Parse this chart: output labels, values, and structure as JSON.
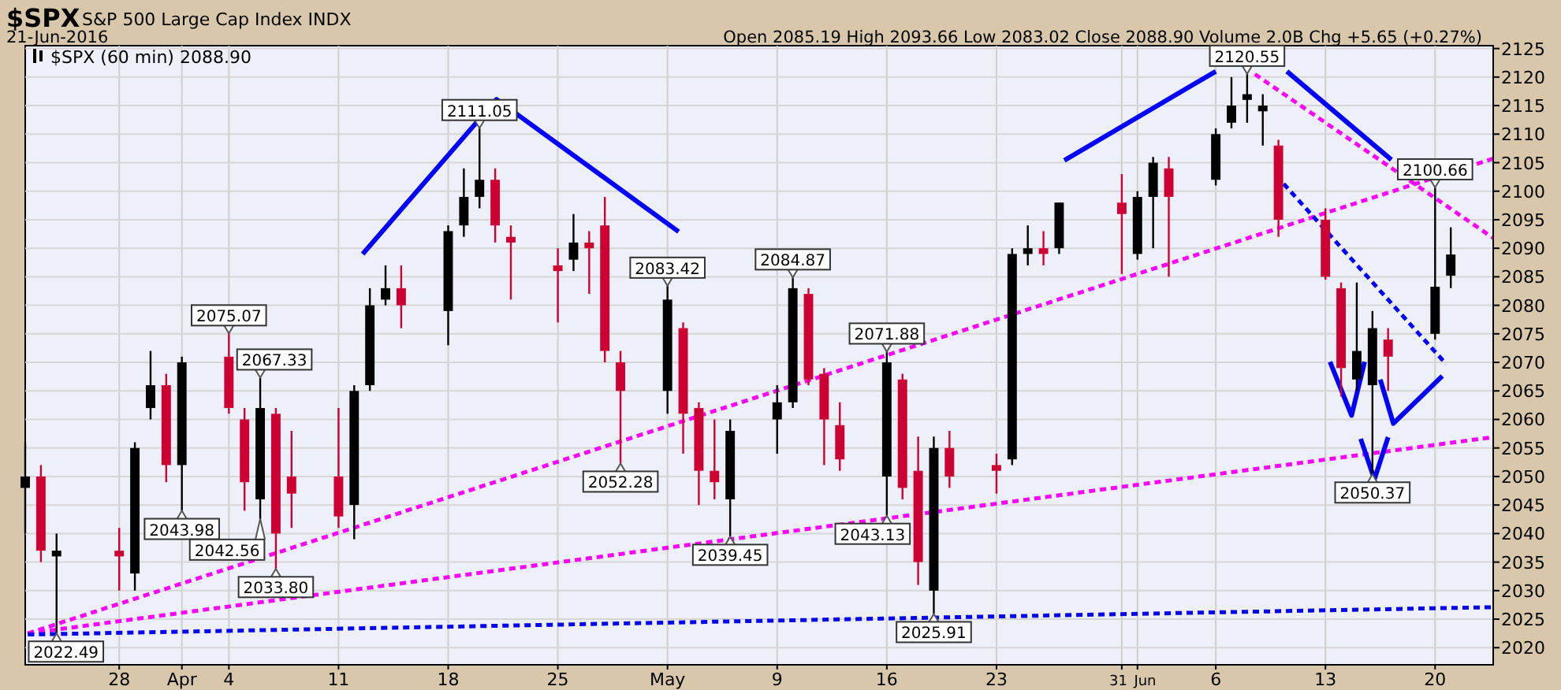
{
  "chart_data": {
    "type": "candlestick",
    "title": "$SPX",
    "subtitle": "S&P 500 Large Cap Index INDX",
    "annotations": [
      "21-Jun-2016",
      "Open 2085.19 High 2093.66 Low 2083.02 Close 2088.90 Volume 2.0B Chg +5.65 (+0.27%)",
      {
        "text": "2022.49",
        "x": "2016-03-24",
        "y": 2022.49
      },
      {
        "text": "2043.98",
        "x": "2016-04-01",
        "y": 2043.98
      },
      {
        "text": "2075.07",
        "x": "2016-04-04",
        "y": 2075.07
      },
      {
        "text": "2042.56",
        "x": "2016-04-06",
        "y": 2042.56
      },
      {
        "text": "2067.33",
        "x": "2016-04-06",
        "y": 2067.33
      },
      {
        "text": "2033.80",
        "x": "2016-04-07",
        "y": 2033.8
      },
      {
        "text": "2111.05",
        "x": "2016-04-20",
        "y": 2111.05
      },
      {
        "text": "2052.28",
        "x": "2016-04-29",
        "y": 2052.28
      },
      {
        "text": "2083.42",
        "x": "2016-05-02",
        "y": 2083.42
      },
      {
        "text": "2039.45",
        "x": "2016-05-06",
        "y": 2039.45
      },
      {
        "text": "2084.87",
        "x": "2016-05-10",
        "y": 2084.87
      },
      {
        "text": "2043.13",
        "x": "2016-05-16",
        "y": 2043.13
      },
      {
        "text": "2071.88",
        "x": "2016-05-16",
        "y": 2071.88
      },
      {
        "text": "2025.91",
        "x": "2016-05-19",
        "y": 2025.91
      },
      {
        "text": "2120.55",
        "x": "2016-06-08",
        "y": 2120.55
      },
      {
        "text": "2050.37",
        "x": "2016-06-16",
        "y": 2050.37
      },
      {
        "text": "2100.66",
        "x": "2016-06-20",
        "y": 2100.66
      }
    ],
    "xlim": [
      "2016-03-22",
      "2016-06-23T17:00"
    ],
    "xticks": [
      {
        "value": "2016-03-28",
        "label": "28"
      },
      {
        "value": "2016-04-01",
        "label": "Apr"
      },
      {
        "value": "2016-04-04",
        "label": "4"
      },
      {
        "value": "2016-04-11",
        "label": "11"
      },
      {
        "value": "2016-04-18",
        "label": "18"
      },
      {
        "value": "2016-04-25",
        "label": "25"
      },
      {
        "value": "2016-05-02",
        "label": "May"
      },
      {
        "value": "2016-05-09",
        "label": "9"
      },
      {
        "value": "2016-05-16",
        "label": "16"
      },
      {
        "value": "2016-05-23",
        "label": "23"
      },
      {
        "value": "2016-05-31",
        "label": "31"
      },
      {
        "value": "2016-06-01",
        "label": "Jun"
      },
      {
        "value": "2016-06-06",
        "label": "6"
      },
      {
        "value": "2016-06-13",
        "label": "13"
      },
      {
        "value": "2016-06-20",
        "label": "20"
      }
    ],
    "ylim": [
      2017,
      2125.5
    ],
    "yticks": [
      2020,
      2025,
      2030,
      2035,
      2040,
      2045,
      2050,
      2055,
      2060,
      2065,
      2070,
      2075,
      2080,
      2085,
      2090,
      2095,
      2100,
      2105,
      2110,
      2115,
      2120,
      2125
    ],
    "grid": true,
    "legend": "top left",
    "series": [
      {
        "name": "$SPX (60 min) 2088.90",
        "color": "#000000",
        "x": [
          "2016-03-22",
          "2016-03-23",
          "2016-03-24",
          "2016-03-28",
          "2016-03-29",
          "2016-03-30",
          "2016-03-31",
          "2016-04-01",
          "2016-04-04",
          "2016-04-05",
          "2016-04-06",
          "2016-04-07",
          "2016-04-08",
          "2016-04-11",
          "2016-04-12",
          "2016-04-13",
          "2016-04-14",
          "2016-04-15",
          "2016-04-18",
          "2016-04-19",
          "2016-04-20",
          "2016-04-21",
          "2016-04-22",
          "2016-04-25",
          "2016-04-26",
          "2016-04-27",
          "2016-04-28",
          "2016-04-29",
          "2016-05-02",
          "2016-05-03",
          "2016-05-04",
          "2016-05-05",
          "2016-05-06",
          "2016-05-09",
          "2016-05-10",
          "2016-05-11",
          "2016-05-12",
          "2016-05-13",
          "2016-05-16",
          "2016-05-17",
          "2016-05-18",
          "2016-05-19",
          "2016-05-20",
          "2016-05-23",
          "2016-05-24",
          "2016-05-25",
          "2016-05-26",
          "2016-05-27",
          "2016-05-31",
          "2016-06-01",
          "2016-06-02",
          "2016-06-03",
          "2016-06-06",
          "2016-06-07",
          "2016-06-08",
          "2016-06-09",
          "2016-06-10",
          "2016-06-13",
          "2016-06-14",
          "2016-06-15",
          "2016-06-16",
          "2016-06-17",
          "2016-06-20",
          "2016-06-21"
        ],
        "ohlc": [
          [
            2048,
            2056,
            2040,
            2050
          ],
          [
            2050,
            2052,
            2035,
            2037
          ],
          [
            2036,
            2040,
            2022.49,
            2037
          ],
          [
            2037,
            2041,
            2030,
            2036
          ],
          [
            2033,
            2056,
            2030,
            2055
          ],
          [
            2062,
            2072,
            2060,
            2066
          ],
          [
            2066,
            2068,
            2049,
            2052
          ],
          [
            2052,
            2071,
            2043.98,
            2070
          ],
          [
            2071,
            2075.07,
            2061,
            2062
          ],
          [
            2060,
            2062,
            2044,
            2049
          ],
          [
            2046,
            2067.33,
            2042.56,
            2062
          ],
          [
            2061,
            2062,
            2033.8,
            2040
          ],
          [
            2050,
            2058,
            2041,
            2047
          ],
          [
            2050,
            2062,
            2041,
            2043
          ],
          [
            2045,
            2066,
            2039,
            2065
          ],
          [
            2066,
            2083,
            2065,
            2080
          ],
          [
            2081,
            2087,
            2080,
            2083
          ],
          [
            2083,
            2087,
            2076,
            2080
          ],
          [
            2079,
            2094,
            2073,
            2093
          ],
          [
            2094,
            2104,
            2092,
            2099
          ],
          [
            2099,
            2111.05,
            2097,
            2102
          ],
          [
            2102,
            2104,
            2091,
            2094
          ],
          [
            2092,
            2094,
            2081,
            2091
          ],
          [
            2087,
            2090,
            2077,
            2086
          ],
          [
            2088,
            2096,
            2086,
            2091
          ],
          [
            2091,
            2093,
            2082,
            2090
          ],
          [
            2094,
            2099,
            2070,
            2072
          ],
          [
            2070,
            2072,
            2052.28,
            2065
          ],
          [
            2065,
            2083.42,
            2061,
            2081
          ],
          [
            2076,
            2077,
            2054,
            2061
          ],
          [
            2062,
            2063,
            2045,
            2051
          ],
          [
            2051,
            2060,
            2046,
            2049
          ],
          [
            2046,
            2060,
            2039.45,
            2058
          ],
          [
            2060,
            2066,
            2054,
            2063
          ],
          [
            2063,
            2084.87,
            2062,
            2083
          ],
          [
            2082,
            2083,
            2066,
            2067
          ],
          [
            2068,
            2069,
            2052,
            2060
          ],
          [
            2059,
            2063,
            2051,
            2053
          ],
          [
            2050,
            2071.88,
            2043.13,
            2070
          ],
          [
            2067,
            2068,
            2046,
            2048
          ],
          [
            2051,
            2057,
            2031,
            2035
          ],
          [
            2030,
            2057,
            2025.91,
            2055
          ],
          [
            2055,
            2058,
            2048,
            2050
          ],
          [
            2052,
            2054,
            2047,
            2051
          ],
          [
            2053,
            2090,
            2052,
            2089
          ],
          [
            2089,
            2094,
            2087,
            2090
          ],
          [
            2090,
            2093,
            2087,
            2089
          ],
          [
            2090,
            2098,
            2089,
            2098
          ],
          [
            2098,
            2103,
            2085.5,
            2096
          ],
          [
            2089,
            2100,
            2088,
            2099
          ],
          [
            2099,
            2106,
            2090,
            2105
          ],
          [
            2104,
            2106,
            2085,
            2099
          ],
          [
            2102,
            2111,
            2101,
            2110
          ],
          [
            2112,
            2120,
            2111,
            2115
          ],
          [
            2116,
            2120.55,
            2112,
            2117
          ],
          [
            2114,
            2117,
            2108,
            2115
          ],
          [
            2108,
            2109,
            2092,
            2095
          ],
          [
            2095,
            2097,
            2084.5,
            2085
          ],
          [
            2083,
            2084,
            2064,
            2069
          ],
          [
            2067,
            2084,
            2065,
            2072
          ],
          [
            2066,
            2079,
            2050.37,
            2076
          ],
          [
            2074,
            2076,
            2065,
            2071
          ],
          [
            2075,
            2100.66,
            2074,
            2083.25
          ],
          [
            2085.19,
            2093.66,
            2083.02,
            2088.9
          ]
        ],
        "colors": [
          "#000000",
          "#cc0033",
          "#000000",
          "#cc0033",
          "#000000",
          "#000000",
          "#cc0033",
          "#000000",
          "#cc0033",
          "#cc0033",
          "#000000",
          "#cc0033",
          "#cc0033",
          "#cc0033",
          "#000000",
          "#000000",
          "#000000",
          "#cc0033",
          "#000000",
          "#000000",
          "#000000",
          "#cc0033",
          "#cc0033",
          "#cc0033",
          "#000000",
          "#cc0033",
          "#cc0033",
          "#cc0033",
          "#000000",
          "#cc0033",
          "#cc0033",
          "#cc0033",
          "#000000",
          "#000000",
          "#000000",
          "#cc0033",
          "#cc0033",
          "#cc0033",
          "#000000",
          "#cc0033",
          "#cc0033",
          "#000000",
          "#cc0033",
          "#cc0033",
          "#000000",
          "#000000",
          "#cc0033",
          "#000000",
          "#cc0033",
          "#000000",
          "#000000",
          "#cc0033",
          "#000000",
          "#000000",
          "#000000",
          "#000000",
          "#cc0033",
          "#cc0033",
          "#cc0033",
          "#000000",
          "#000000",
          "#cc0033",
          "#000000",
          "#000000"
        ]
      },
      {
        "type": "line",
        "color": "#ff00ff",
        "line_style": "dotted",
        "x": [
          "2016-03-22T04:00",
          "2016-06-23T17:00"
        ],
        "values": [
          2022.5,
          2105.7
        ]
      },
      {
        "type": "line",
        "color": "#ff00ff",
        "line_style": "dotted",
        "x": [
          "2016-03-22T04:00",
          "2016-06-23T17:00"
        ],
        "values": [
          2022.5,
          2056.9
        ]
      },
      {
        "type": "line",
        "color": "#ff00ff",
        "line_style": "dotted",
        "x": [
          "2016-06-08T12:00",
          "2016-06-23T17:00"
        ],
        "values": [
          2120.5,
          2091.8
        ]
      },
      {
        "type": "line",
        "color": "#0000ff",
        "line_style": "dotted",
        "x": [
          "2016-03-22T04:00",
          "2016-06-23T17:00"
        ],
        "values": [
          2022.3,
          2027.1
        ]
      },
      {
        "type": "line",
        "color": "#0000ff",
        "line_style": "dotted",
        "x": [
          "2016-06-10T08:00",
          "2016-06-20T17:00"
        ],
        "values": [
          2101.3,
          2069.7
        ]
      },
      {
        "type": "line",
        "color": "#0000ff",
        "line_style": "solid",
        "x": [
          "2016-04-12T13:00",
          "2016-04-21T02:00",
          "2016-05-02T17:00"
        ],
        "values": [
          2089,
          2116.1,
          2092.9
        ]
      },
      {
        "type": "line",
        "color": "#0000ff",
        "line_style": "solid",
        "x": [
          "2016-05-27T08:00",
          "2016-06-06T00:00"
        ],
        "values": [
          2105.4,
          2121
        ]
      },
      {
        "type": "line",
        "color": "#0000ff",
        "line_style": "solid",
        "x": [
          "2016-06-10T13:00",
          "2016-06-17T05:00"
        ],
        "values": [
          2121,
          2105.5
        ]
      },
      {
        "type": "line",
        "color": "#0000ff",
        "line_style": "solid",
        "x": [
          "2016-06-13T07:00",
          "2016-06-14T16:00",
          "2016-06-15T12:00"
        ],
        "values": [
          2070.1,
          2060.7,
          2070.1
        ]
      },
      {
        "type": "line",
        "color": "#0000ff",
        "line_style": "solid",
        "x": [
          "2016-06-15T06:00",
          "2016-06-16T03:00",
          "2016-06-17T00:00"
        ],
        "values": [
          2056.6,
          2049.5,
          2056.9
        ]
      },
      {
        "type": "line",
        "color": "#0000ff",
        "line_style": "solid",
        "x": [
          "2016-06-16T12:00",
          "2016-06-17T08:00",
          "2016-06-20T11:00"
        ],
        "values": [
          2067,
          2059.3,
          2067.6
        ]
      }
    ]
  }
}
